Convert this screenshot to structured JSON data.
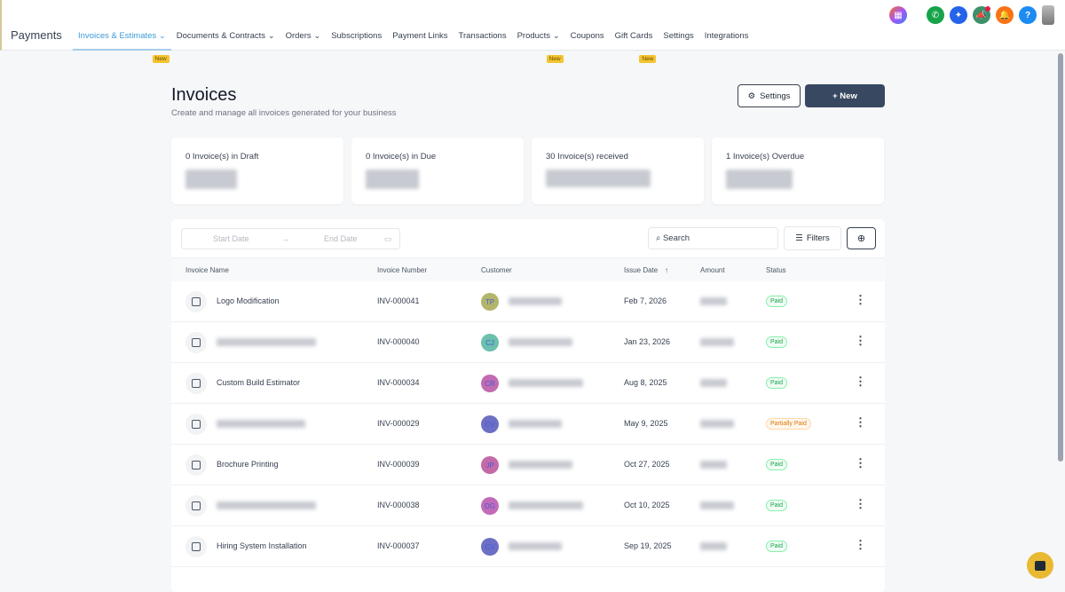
{
  "header": {
    "brand": "Payments",
    "nav": [
      {
        "label": "Invoices & Estimates",
        "dropdown": true,
        "new": true,
        "active": true
      },
      {
        "label": "Documents & Contracts",
        "dropdown": true
      },
      {
        "label": "Orders",
        "dropdown": true
      },
      {
        "label": "Subscriptions"
      },
      {
        "label": "Payment Links"
      },
      {
        "label": "Transactions"
      },
      {
        "label": "Products",
        "dropdown": true,
        "new": true
      },
      {
        "label": "Coupons"
      },
      {
        "label": "Gift Cards",
        "new": true
      },
      {
        "label": "Settings"
      },
      {
        "label": "Integrations"
      }
    ],
    "new_badge": "New",
    "help": "?"
  },
  "page": {
    "title": "Invoices",
    "subtitle": "Create and manage all invoices generated for your business",
    "settings_label": "Settings",
    "new_label": "+ New"
  },
  "cards": [
    {
      "label": "0 Invoice(s) in Draft"
    },
    {
      "label": "0 Invoice(s) in Due"
    },
    {
      "label": "30 Invoice(s) received"
    },
    {
      "label": "1 Invoice(s) Overdue"
    }
  ],
  "toolbar": {
    "start_date": "Start Date",
    "end_date": "End Date",
    "search_placeholder": "Search",
    "filters_label": "Filters"
  },
  "columns": [
    "Invoice Name",
    "Invoice Number",
    "Customer",
    "Issue Date",
    "Amount",
    "Status"
  ],
  "rows": [
    {
      "name": "Logo Modification",
      "number": "INV-000041",
      "initials": "TP",
      "color": "#b3b56a",
      "date": "Feb 7, 2026",
      "status": "Paid"
    },
    {
      "name": "",
      "number": "INV-000040",
      "initials": "CJ",
      "color": "#6cc0ad",
      "date": "Jan 23, 2026",
      "status": "Paid"
    },
    {
      "name": "Custom Build Estimator",
      "number": "INV-000034",
      "initials": "CR",
      "color": "#c26bb0",
      "date": "Aug 8, 2025",
      "status": "Paid"
    },
    {
      "name": "",
      "number": "INV-000029",
      "initials": "CV",
      "color": "#6c6fc4",
      "date": "May 9, 2025",
      "status": "Partially Paid"
    },
    {
      "name": "Brochure Printing",
      "number": "INV-000039",
      "initials": "JP",
      "color": "#c46aa8",
      "date": "Oct 27, 2025",
      "status": "Paid"
    },
    {
      "name": "",
      "number": "INV-000038",
      "initials": "DG",
      "color": "#c26bb8",
      "date": "Oct 10, 2025",
      "status": "Paid"
    },
    {
      "name": "Hiring System Installation",
      "number": "INV-000037",
      "initials": "CV",
      "color": "#6c6fc4",
      "date": "Sep 19, 2025",
      "status": "Paid"
    }
  ]
}
